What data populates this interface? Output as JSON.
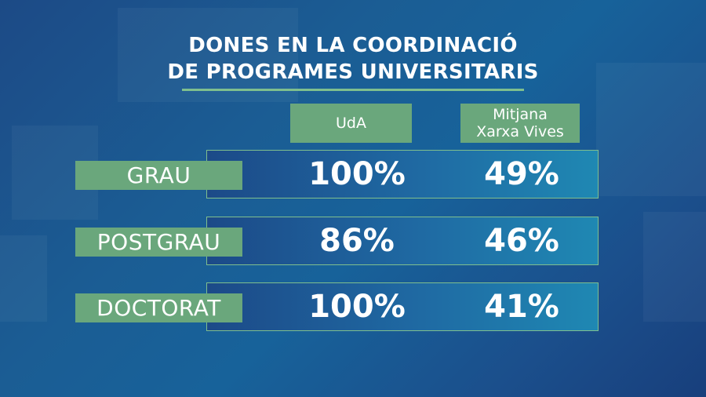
{
  "title": {
    "line1": "DONES EN LA COORDINACIÓ",
    "line2": "DE PROGRAMES UNIVERSITARIS"
  },
  "columns": {
    "uda": "UdA",
    "xarxa_line1": "Mitjana",
    "xarxa_line2": "Xarxa Vives"
  },
  "rows": [
    {
      "label": "GRAU",
      "uda": "100%",
      "xarxa": "49%"
    },
    {
      "label": "POSTGRAU",
      "uda": "86%",
      "xarxa": "46%"
    },
    {
      "label": "DOCTORAT",
      "uda": "100%",
      "xarxa": "41%"
    }
  ],
  "colors": {
    "background": "#1b5d94",
    "accent_green": "#6aa77c",
    "rule_green": "#7fbf8e",
    "text": "#ffffff"
  }
}
